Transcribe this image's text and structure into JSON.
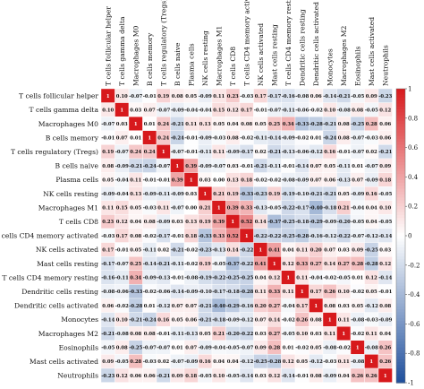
{
  "chart_data": {
    "type": "heatmap",
    "title": "",
    "labels": [
      "T cells follicular helper",
      "T cells gamma delta",
      "Macrophages M0",
      "B cells memory",
      "T cells regulatory (Tregs)",
      "B cells naive",
      "Plasma cells",
      "NK cells resting",
      "Macrophages M1",
      "T cells CD8",
      "T cells CD4 memory activated",
      "NK cells activated",
      "Mast cells resting",
      "T cells CD4 memory resting",
      "Dendritic cells resting",
      "Dendritic cells activated",
      "Monocytes",
      "Macrophages M2",
      "Eosinophils",
      "Mast cells activated",
      "Neutrophils"
    ],
    "matrix": [
      [
        1,
        0.1,
        -0.07,
        -0.01,
        0.19,
        0.08,
        0.05,
        -0.09,
        0.11,
        0.23,
        -0.03,
        0.17,
        -0.17,
        -0.16,
        -0.08,
        0.06,
        -0.14,
        -0.21,
        -0.05,
        0.09,
        -0.23
      ],
      [
        0.1,
        1,
        0.03,
        0.07,
        -0.07,
        -0.09,
        -0.04,
        -0.04,
        0.15,
        0.12,
        0.17,
        -0.01,
        -0.07,
        -0.11,
        -0.06,
        -0.02,
        0.1,
        -0.08,
        0.08,
        -0.05,
        0.12
      ],
      [
        -0.07,
        0.03,
        1,
        0.01,
        0.24,
        -0.21,
        0.11,
        0.13,
        0.05,
        0.04,
        0.08,
        0.05,
        0.25,
        0.34,
        -0.33,
        -0.28,
        -0.21,
        0.08,
        -0.25,
        0.28,
        0.06
      ],
      [
        -0.01,
        0.07,
        0.01,
        1,
        0.24,
        -0.24,
        -0.01,
        -0.09,
        -0.03,
        0.08,
        -0.02,
        -0.11,
        -0.14,
        -0.09,
        -0.02,
        0.01,
        -0.24,
        0.08,
        -0.07,
        -0.03,
        0.06
      ],
      [
        0.19,
        -0.07,
        0.24,
        0.24,
        1,
        -0.07,
        -0.01,
        -0.11,
        0.11,
        -0.09,
        -0.17,
        0.02,
        -0.21,
        -0.13,
        -0.06,
        -0.12,
        0.16,
        -0.01,
        -0.07,
        0.02,
        -0.21
      ],
      [
        0.08,
        -0.09,
        -0.21,
        -0.24,
        -0.07,
        1,
        0.39,
        -0.09,
        -0.07,
        0.03,
        -0.01,
        -0.21,
        -0.11,
        -0.01,
        -0.14,
        0.07,
        0.05,
        -0.11,
        0.01,
        -0.07,
        0.09
      ],
      [
        0.05,
        -0.04,
        0.11,
        -0.01,
        -0.01,
        0.39,
        1,
        0.03,
        0.0,
        0.13,
        0.18,
        -0.02,
        -0.02,
        -0.08,
        -0.09,
        0.07,
        0.06,
        -0.13,
        0.07,
        -0.09,
        0.18
      ],
      [
        -0.09,
        -0.04,
        0.13,
        -0.09,
        -0.11,
        -0.09,
        0.03,
        1,
        0.21,
        0.19,
        -0.33,
        -0.23,
        0.19,
        -0.19,
        -0.1,
        -0.21,
        -0.21,
        0.05,
        -0.09,
        0.16,
        -0.05
      ],
      [
        0.11,
        0.15,
        0.05,
        -0.03,
        0.11,
        -0.07,
        0.0,
        0.21,
        1,
        0.39,
        0.33,
        -0.13,
        -0.05,
        -0.22,
        -0.17,
        -0.4,
        -0.18,
        0.21,
        -0.04,
        0.04,
        0.1
      ],
      [
        0.23,
        0.12,
        0.04,
        0.08,
        -0.09,
        0.03,
        0.13,
        0.19,
        0.39,
        1,
        0.52,
        0.14,
        -0.37,
        -0.25,
        -0.18,
        -0.29,
        -0.09,
        -0.2,
        -0.05,
        0.04,
        -0.05
      ],
      [
        -0.03,
        0.17,
        0.08,
        -0.02,
        -0.17,
        -0.01,
        0.18,
        -0.33,
        0.33,
        0.52,
        1,
        -0.22,
        -0.22,
        -0.25,
        -0.28,
        -0.16,
        -0.12,
        -0.22,
        -0.07,
        -0.12,
        -0.14
      ],
      [
        0.17,
        -0.01,
        0.05,
        -0.11,
        0.02,
        -0.21,
        -0.02,
        -0.23,
        -0.13,
        0.14,
        -0.22,
        1,
        0.41,
        0.04,
        0.11,
        0.2,
        0.07,
        0.03,
        0.09,
        -0.25,
        0.03
      ],
      [
        -0.17,
        -0.07,
        0.25,
        -0.14,
        -0.21,
        -0.11,
        -0.02,
        0.19,
        -0.05,
        -0.37,
        -0.22,
        0.41,
        1,
        0.12,
        0.33,
        0.27,
        0.14,
        0.27,
        0.28,
        -0.28,
        0.12
      ],
      [
        -0.16,
        -0.11,
        0.34,
        -0.09,
        -0.13,
        -0.01,
        -0.08,
        -0.19,
        -0.22,
        -0.25,
        -0.25,
        0.04,
        0.12,
        1,
        0.11,
        -0.04,
        -0.02,
        -0.05,
        0.01,
        0.12,
        -0.14
      ],
      [
        -0.08,
        -0.06,
        -0.33,
        -0.02,
        -0.06,
        -0.14,
        -0.09,
        -0.1,
        -0.17,
        -0.18,
        -0.28,
        0.11,
        0.33,
        0.11,
        1,
        0.17,
        0.26,
        0.1,
        -0.02,
        0.05,
        -0.01
      ],
      [
        0.06,
        -0.02,
        -0.28,
        0.01,
        -0.12,
        0.07,
        0.07,
        -0.21,
        -0.4,
        -0.29,
        -0.16,
        0.2,
        0.27,
        -0.04,
        0.17,
        1,
        0.08,
        0.03,
        0.05,
        -0.12,
        0.08
      ],
      [
        -0.14,
        0.1,
        -0.21,
        -0.24,
        0.16,
        0.05,
        0.06,
        -0.21,
        -0.18,
        -0.09,
        -0.12,
        0.07,
        0.14,
        -0.02,
        0.26,
        0.08,
        1,
        0.11,
        -0.08,
        -0.03,
        -0.09
      ],
      [
        -0.21,
        -0.08,
        0.08,
        0.08,
        -0.01,
        -0.11,
        -0.13,
        0.05,
        0.21,
        -0.2,
        -0.22,
        0.03,
        0.27,
        -0.05,
        0.1,
        0.03,
        0.11,
        1,
        -0.02,
        0.11,
        0.04
      ],
      [
        -0.05,
        0.08,
        -0.25,
        -0.07,
        -0.07,
        0.01,
        0.07,
        -0.09,
        -0.04,
        -0.05,
        -0.07,
        0.09,
        0.28,
        0.01,
        -0.02,
        0.05,
        -0.08,
        -0.02,
        1,
        -0.08,
        0.26
      ],
      [
        0.09,
        -0.05,
        0.28,
        -0.03,
        0.02,
        -0.07,
        -0.09,
        0.16,
        0.04,
        0.04,
        -0.12,
        -0.25,
        -0.28,
        0.12,
        0.05,
        -0.12,
        -0.03,
        0.11,
        -0.08,
        1,
        0.26
      ],
      [
        -0.23,
        0.12,
        0.06,
        0.06,
        -0.21,
        0.09,
        0.18,
        -0.05,
        0.1,
        -0.05,
        -0.14,
        0.03,
        0.12,
        -0.14,
        -0.01,
        0.08,
        -0.09,
        0.04,
        0.26,
        0.26,
        1
      ]
    ],
    "color_scale": {
      "low": "#1f4f9c",
      "mid": "#ffffff",
      "high": "#d7191c",
      "min": -1,
      "max": 1
    },
    "colorbar_ticks": [
      "1",
      "0.8",
      "0.6",
      "0.4",
      "0.2",
      "0",
      "-0.2",
      "-0.4",
      "-0.6",
      "-0.8",
      "-1"
    ],
    "grid": false,
    "legend": "right"
  }
}
